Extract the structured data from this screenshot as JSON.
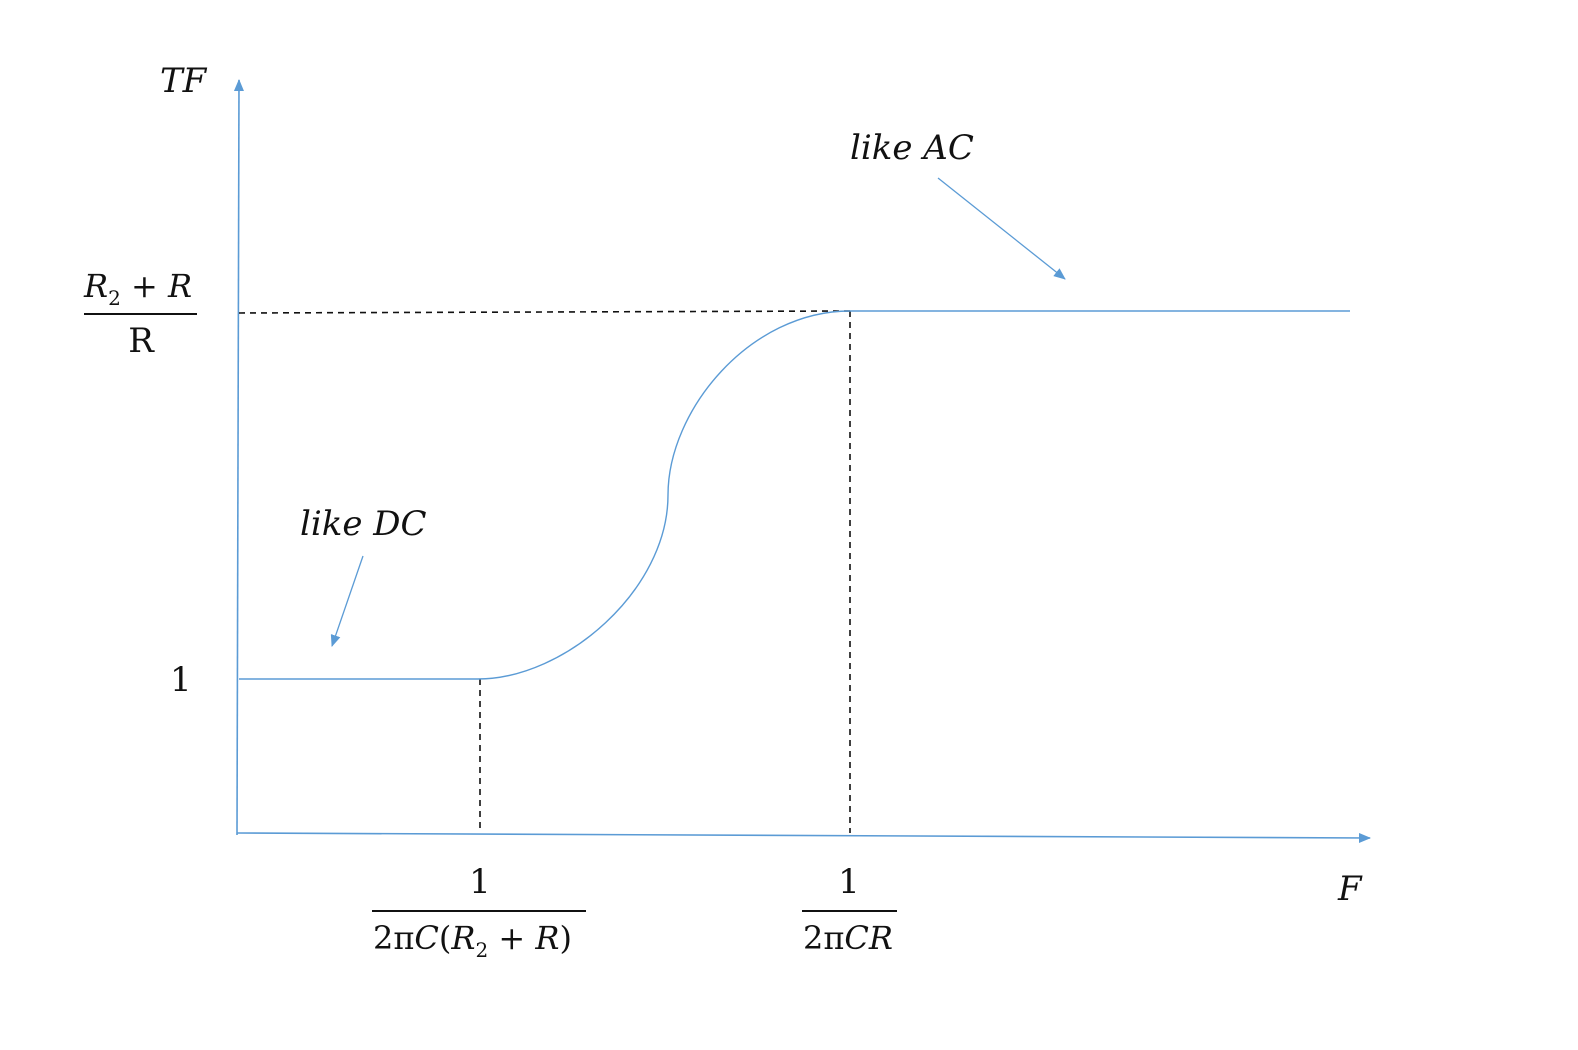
{
  "axes": {
    "y_label": "TF",
    "x_label": "F"
  },
  "y_ticks": {
    "low": "1",
    "high": {
      "numerator_main": "R",
      "numerator_sub": "2",
      "numerator_rest": " + R",
      "denominator": "R"
    }
  },
  "x_ticks": {
    "lower_cutoff": {
      "numerator": "1",
      "denominator_prefix": "2π",
      "denominator_c": "C",
      "denominator_open": "(",
      "denominator_r": "R",
      "denominator_sub": "2",
      "denominator_rest": " + R",
      "denominator_close": ")"
    },
    "upper_cutoff": {
      "numerator": "1",
      "denominator_prefix": "2π",
      "denominator_italic": "CR"
    }
  },
  "annotations": {
    "dc": "like DC",
    "ac": "like AC"
  },
  "colors": {
    "line": "#5b9bd5",
    "guide": "#111111"
  }
}
